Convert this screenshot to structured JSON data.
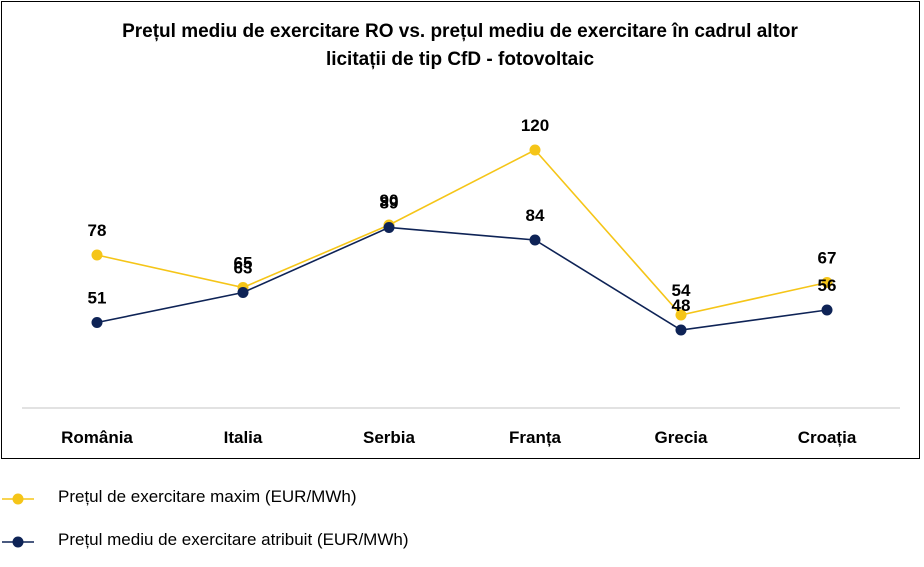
{
  "chart_data": {
    "type": "line",
    "title_line1": "Prețul mediu de exercitare RO vs. prețul mediu de exercitare în cadrul altor",
    "title_line2": "licitații de tip CfD - fotovoltaic",
    "categories": [
      "România",
      "Italia",
      "Serbia",
      "Franța",
      "Grecia",
      "Croația"
    ],
    "series": [
      {
        "name": "Prețul de exercitare maxim (EUR/MWh)",
        "color": "#F5C518",
        "values": [
          78,
          65,
          90,
          120,
          54,
          67
        ]
      },
      {
        "name": "Prețul mediu de exercitare atribuit (EUR/MWh)",
        "color": "#0E2356",
        "values": [
          51,
          63,
          89,
          84,
          48,
          56
        ]
      }
    ],
    "grid": false,
    "legend_position": "bottom"
  }
}
